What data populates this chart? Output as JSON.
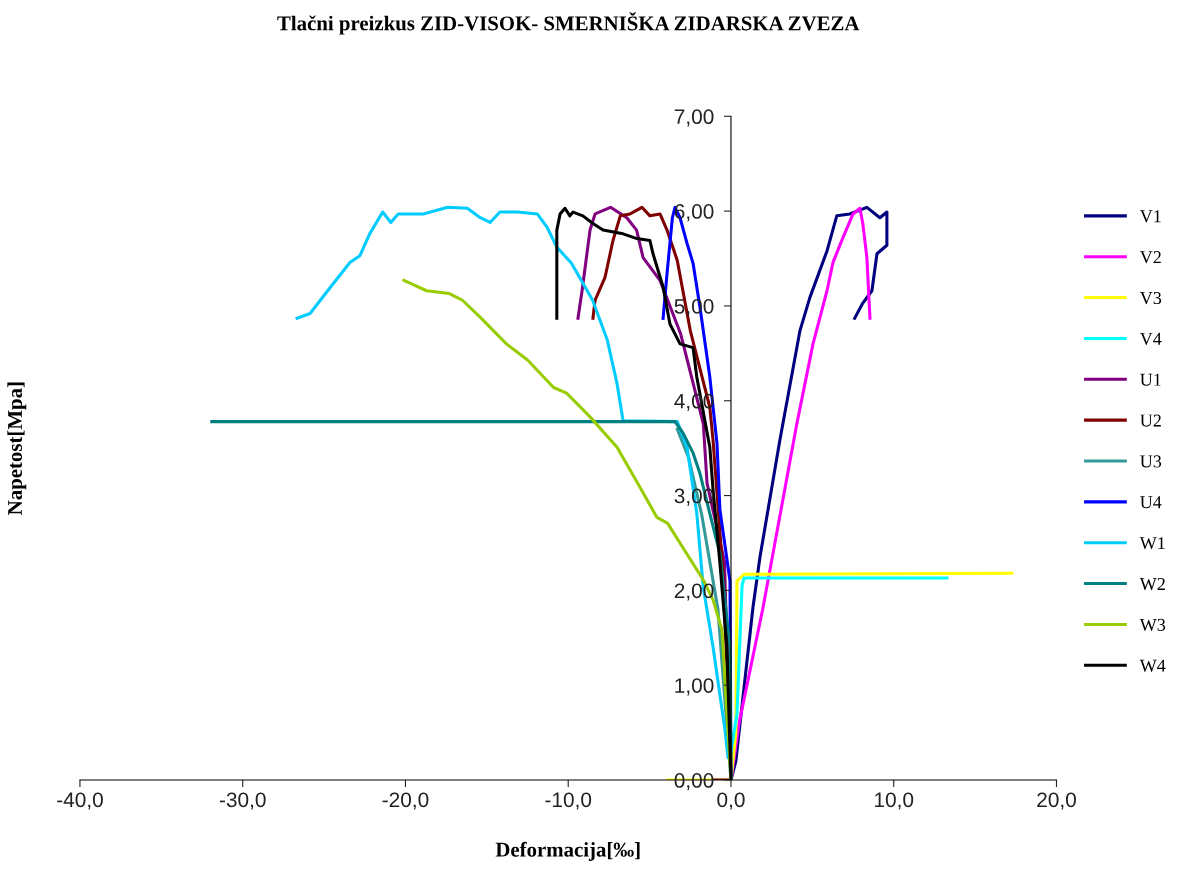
{
  "chart_data": {
    "type": "line",
    "title": "Tlačni preizkus ZID-VISOK- SMERNIŠKA ZIDARSKA ZVEZA",
    "xlabel": "Deformacija[‰]",
    "ylabel": "Napetost[Mpa]",
    "xlim": [
      -40,
      20
    ],
    "ylim": [
      0,
      7
    ],
    "xticks": [
      {
        "value": -40,
        "label": "-40,0"
      },
      {
        "value": -30,
        "label": "-30,0"
      },
      {
        "value": -20,
        "label": "-20,0"
      },
      {
        "value": -10,
        "label": "-10,0"
      },
      {
        "value": 0,
        "label": "0,0"
      },
      {
        "value": 10,
        "label": "10,0"
      },
      {
        "value": 20,
        "label": "20,0"
      }
    ],
    "yticks": [
      {
        "value": 0,
        "label": "0,00"
      },
      {
        "value": 1,
        "label": "1,00"
      },
      {
        "value": 2,
        "label": "2,00"
      },
      {
        "value": 3,
        "label": "3,00"
      },
      {
        "value": 4,
        "label": "4,00"
      },
      {
        "value": 5,
        "label": "5,00"
      },
      {
        "value": 6,
        "label": "6,00"
      },
      {
        "value": 7,
        "label": "7,00"
      }
    ],
    "grid": false,
    "legend": "right",
    "marker": "none",
    "line_style": "solid",
    "series": [
      {
        "name": "V1",
        "color": "#000080",
        "x": [
          0,
          0.3,
          1.35,
          1.78,
          3.0,
          4.24,
          4.85,
          5.9,
          6.5,
          7.3,
          8.35,
          9.15,
          9.58,
          9.58,
          8.97,
          8.66,
          8.1,
          7.6
        ],
        "values": [
          0,
          0.2,
          1.82,
          2.35,
          3.58,
          4.74,
          5.09,
          5.58,
          5.95,
          5.97,
          6.04,
          5.93,
          5.99,
          5.64,
          5.55,
          5.16,
          5.03,
          4.87
        ]
      },
      {
        "name": "V2",
        "color": "#ff00ff",
        "x": [
          0,
          0.5,
          1.97,
          4.05,
          5.04,
          5.9,
          6.27,
          6.88,
          7.5,
          7.92,
          8.1,
          8.35,
          8.54
        ],
        "values": [
          0,
          0.6,
          1.82,
          3.76,
          4.6,
          5.16,
          5.46,
          5.72,
          5.97,
          6.03,
          5.87,
          5.51,
          4.87
        ]
      },
      {
        "name": "V3",
        "color": "#ffff00",
        "x": [
          -3.9,
          0,
          0.3,
          0.37,
          0.8,
          17.26
        ],
        "values": [
          0,
          0,
          0.5,
          2.1,
          2.17,
          2.18
        ]
      },
      {
        "name": "V4",
        "color": "#00ffff",
        "x": [
          0,
          0.37,
          0.68,
          0.8,
          13.27
        ],
        "values": [
          0.3,
          0.7,
          2.05,
          2.13,
          2.13
        ]
      },
      {
        "name": "U1",
        "color": "#800080",
        "x": [
          0,
          -0.4,
          -1.47,
          -1.7,
          -3.1,
          -4.36,
          -5.4,
          -5.8,
          -6.4,
          -7.4,
          -8.35,
          -8.66,
          -9.15,
          -9.4
        ],
        "values": [
          0,
          2.3,
          3.13,
          3.76,
          4.71,
          5.27,
          5.51,
          5.8,
          5.93,
          6.04,
          5.97,
          5.8,
          5.16,
          4.87
        ]
      },
      {
        "name": "U2",
        "color": "#800000",
        "x": [
          -1.0,
          0,
          -0.2,
          -0.5,
          -1.1,
          -1.3,
          -2.5,
          -3.3,
          -3.93,
          -4.36,
          -4.98,
          -5.47,
          -6.2,
          -6.8,
          -7.25,
          -7.74,
          -8.35,
          -8.48
        ],
        "values": [
          0,
          0,
          1.0,
          2.2,
          3.58,
          3.93,
          4.74,
          5.48,
          5.8,
          5.97,
          5.95,
          6.04,
          5.97,
          5.95,
          5.69,
          5.3,
          5.06,
          4.87
        ]
      },
      {
        "name": "U3",
        "color": "#339999",
        "x": [
          0,
          -0.8,
          -1.8,
          -2.6,
          -3.3
        ],
        "values": [
          0,
          1.8,
          2.8,
          3.4,
          3.7
        ]
      },
      {
        "name": "U4",
        "color": "#0000ff",
        "x": [
          0,
          -0.06,
          -0.68,
          -0.86,
          -1.3,
          -1.9,
          -2.33,
          -2.7,
          -3.13,
          -3.44,
          -3.6,
          -3.93,
          -4.17
        ],
        "values": [
          0,
          2.1,
          2.85,
          3.55,
          4.25,
          4.98,
          5.45,
          5.66,
          5.93,
          6.04,
          5.93,
          5.34,
          4.87
        ]
      },
      {
        "name": "W1",
        "color": "#00ccff",
        "x": [
          -26.66,
          -25.86,
          -24.6,
          -23.4,
          -22.8,
          -22.2,
          -21.4,
          -20.9,
          -20.45,
          -18.9,
          -17.4,
          -16.2,
          -15.4,
          -14.8,
          -14.2,
          -13.1,
          -11.9,
          -11.3,
          -10.7,
          -9.8,
          -8.5,
          -7.6,
          -7.0,
          -6.63,
          -3.3,
          -2.7,
          -2.1,
          -1.7,
          -1.1,
          -0.37,
          -0.18
        ],
        "values": [
          4.87,
          4.92,
          5.2,
          5.46,
          5.53,
          5.76,
          5.99,
          5.88,
          5.97,
          5.97,
          6.04,
          6.03,
          5.93,
          5.88,
          5.99,
          5.99,
          5.97,
          5.83,
          5.62,
          5.45,
          5.06,
          4.64,
          4.18,
          3.79,
          3.78,
          3.51,
          2.81,
          2.03,
          1.4,
          0.53,
          0.24
        ]
      },
      {
        "name": "W2",
        "color": "#008080",
        "x": [
          0,
          -0.06,
          -0.68,
          -1.3,
          -1.9,
          -2.33,
          -2.95,
          -3.44,
          -31.9
        ],
        "values": [
          0,
          1.4,
          2.39,
          2.81,
          3.23,
          3.45,
          3.66,
          3.78,
          3.78
        ]
      },
      {
        "name": "W3",
        "color": "#99cc00",
        "x": [
          -20.1,
          -18.7,
          -17.3,
          -16.5,
          -15.4,
          -13.8,
          -12.5,
          -10.9,
          -10.1,
          -8.66,
          -7.0,
          -6.8,
          -5.6,
          -4.55,
          -3.9,
          -1.7,
          -1.1,
          -0.55,
          -0.25,
          0
        ],
        "values": [
          5.27,
          5.16,
          5.13,
          5.06,
          4.88,
          4.6,
          4.43,
          4.14,
          4.08,
          3.83,
          3.51,
          3.45,
          3.09,
          2.77,
          2.71,
          2.11,
          1.9,
          1.58,
          0.7,
          0
        ]
      },
      {
        "name": "W4",
        "color": "#000000",
        "x": [
          -10.7,
          -10.7,
          -10.5,
          -10.2,
          -9.9,
          -9.7,
          -9.1,
          -8.48,
          -7.86,
          -6.63,
          -5.78,
          -4.98,
          -4.79,
          -4.17,
          -3.75,
          -3.13,
          -2.33,
          -2.1,
          -1.3,
          -1.1,
          -0.68,
          -0.25,
          0
        ],
        "values": [
          4.87,
          5.8,
          5.97,
          6.03,
          5.95,
          5.99,
          5.95,
          5.87,
          5.8,
          5.76,
          5.71,
          5.69,
          5.55,
          5.2,
          4.81,
          4.6,
          4.56,
          4.25,
          3.51,
          3.06,
          2.29,
          1.4,
          0
        ]
      }
    ]
  }
}
